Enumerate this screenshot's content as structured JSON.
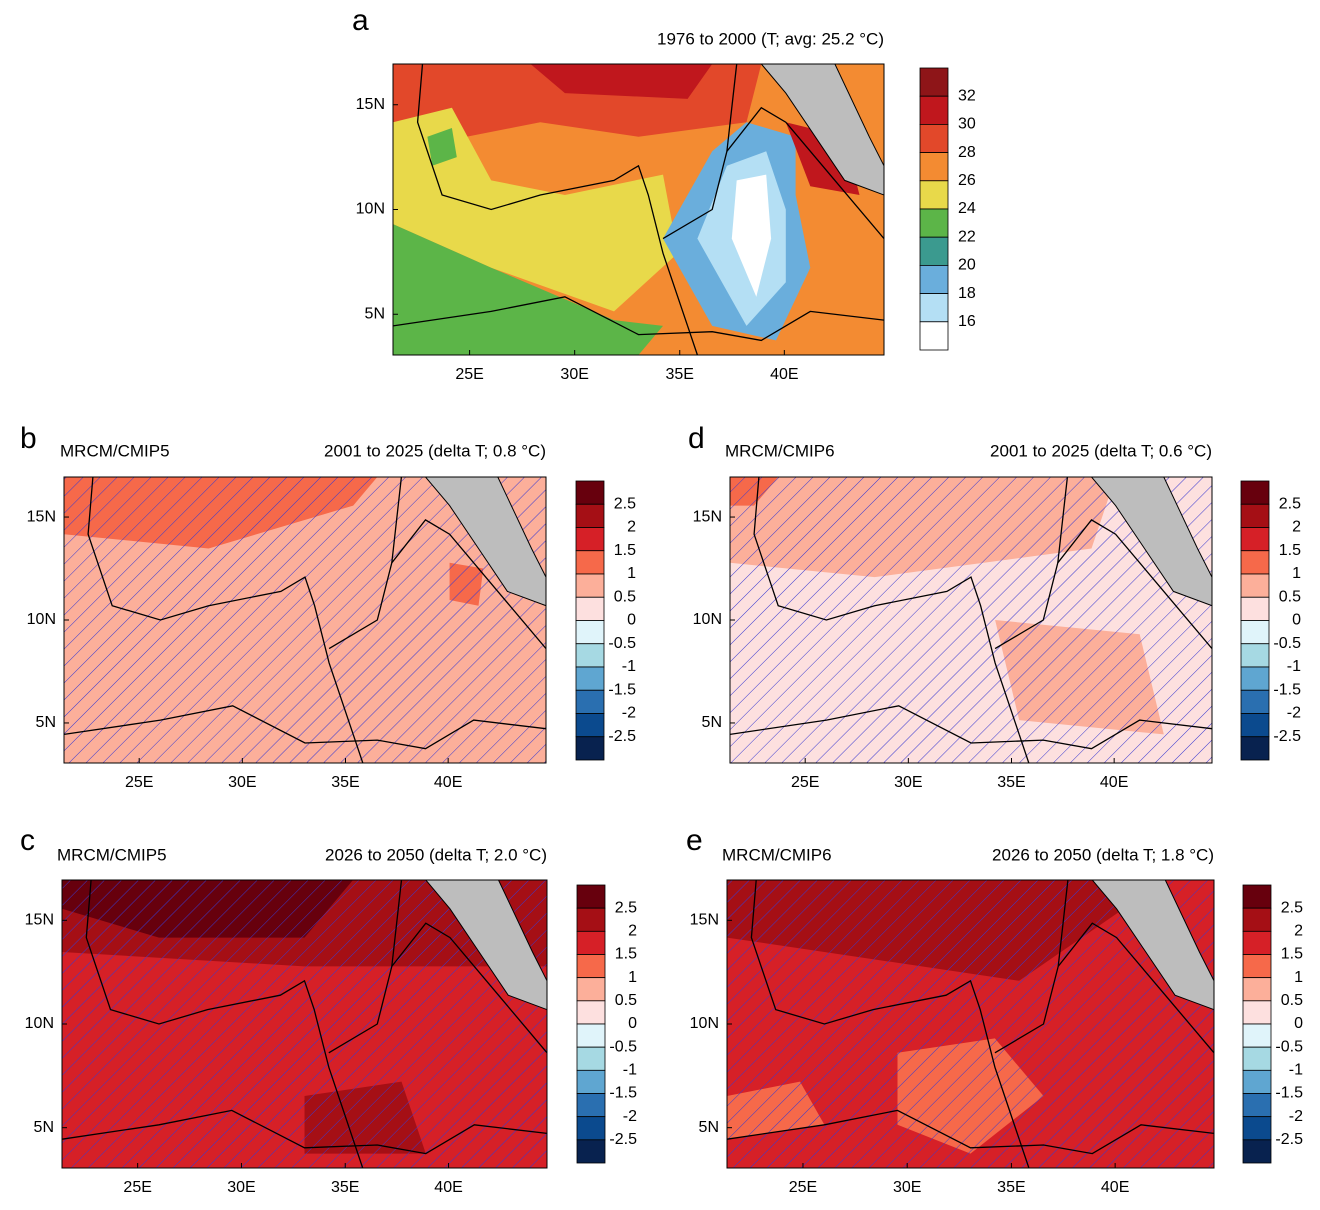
{
  "lon_ticks": [
    "25E",
    "30E",
    "35E",
    "40E"
  ],
  "lat_ticks": [
    "15N",
    "10N",
    "5N"
  ],
  "abs_colorbar": {
    "labels": [
      32,
      30,
      28,
      26,
      24,
      22,
      20,
      18,
      16
    ],
    "colors": [
      "#8e1518",
      "#c0171d",
      "#e2482a",
      "#f38b32",
      "#e8d94a",
      "#5cb548",
      "#3b9a8f",
      "#6aaedc",
      "#b4dff4",
      "#ffffff"
    ]
  },
  "delta_colorbar": {
    "labels": [
      2.5,
      2,
      1.5,
      1,
      0.5,
      0,
      -0.5,
      -1,
      -1.5,
      -2,
      -2.5
    ],
    "colors": [
      "#67000d",
      "#a50f15",
      "#d62027",
      "#f6694a",
      "#fcaf9a",
      "#fde0df",
      "#e0f4fa",
      "#a6d9e3",
      "#5fa6d1",
      "#2a6fb0",
      "#0b4a8e",
      "#08224f"
    ]
  },
  "panels": [
    {
      "label": "a",
      "title": "1976 to 2000 (T; avg: 25.2 °C)",
      "scale": "abs"
    },
    {
      "label": "b",
      "model": "MRCM/CMIP5",
      "title": "2001 to 2025 (delta T; 0.8 °C)",
      "scale": "delta"
    },
    {
      "label": "c",
      "model": "MRCM/CMIP5",
      "title": "2026 to 2050 (delta T; 2.0 °C)",
      "scale": "delta"
    },
    {
      "label": "d",
      "model": "MRCM/CMIP6",
      "title": "2001 to 2025 (delta T; 0.6 °C)",
      "scale": "delta"
    },
    {
      "label": "e",
      "model": "MRCM/CMIP6",
      "title": "2026 to 2050 (delta T; 1.8 °C)",
      "scale": "delta"
    }
  ]
}
